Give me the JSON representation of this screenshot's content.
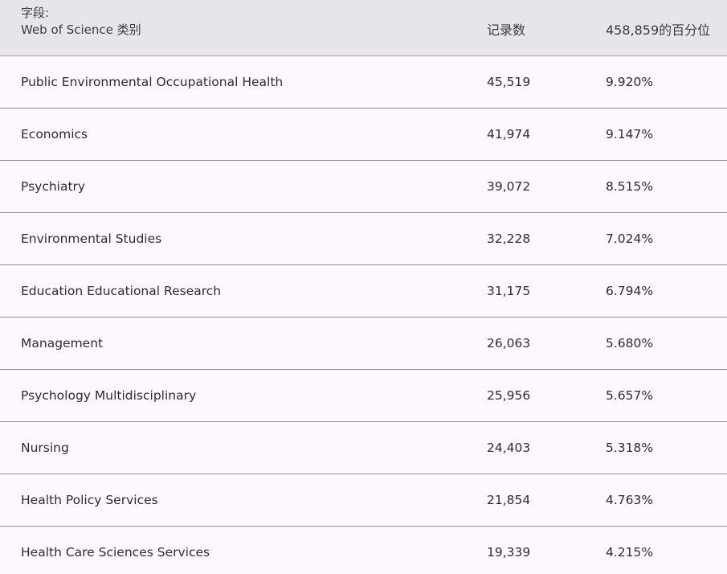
{
  "header": {
    "field_label_line1": "字段:",
    "field_label_line2": "Web of Science 类别",
    "count_label": "记录数",
    "percent_label": "458,859的百分位"
  },
  "rows": [
    {
      "name": "Public Environmental Occupational Health",
      "count": "45,519",
      "percent": "9.920%"
    },
    {
      "name": "Economics",
      "count": "41,974",
      "percent": "9.147%"
    },
    {
      "name": "Psychiatry",
      "count": "39,072",
      "percent": "8.515%"
    },
    {
      "name": "Environmental Studies",
      "count": "32,228",
      "percent": "7.024%"
    },
    {
      "name": "Education Educational Research",
      "count": "31,175",
      "percent": "6.794%"
    },
    {
      "name": "Management",
      "count": "26,063",
      "percent": "5.680%"
    },
    {
      "name": "Psychology Multidisciplinary",
      "count": "25,956",
      "percent": "5.657%"
    },
    {
      "name": "Nursing",
      "count": "24,403",
      "percent": "5.318%"
    },
    {
      "name": "Health Policy Services",
      "count": "21,854",
      "percent": "4.763%"
    },
    {
      "name": "Health Care Sciences Services",
      "count": "19,339",
      "percent": "4.215%"
    }
  ]
}
